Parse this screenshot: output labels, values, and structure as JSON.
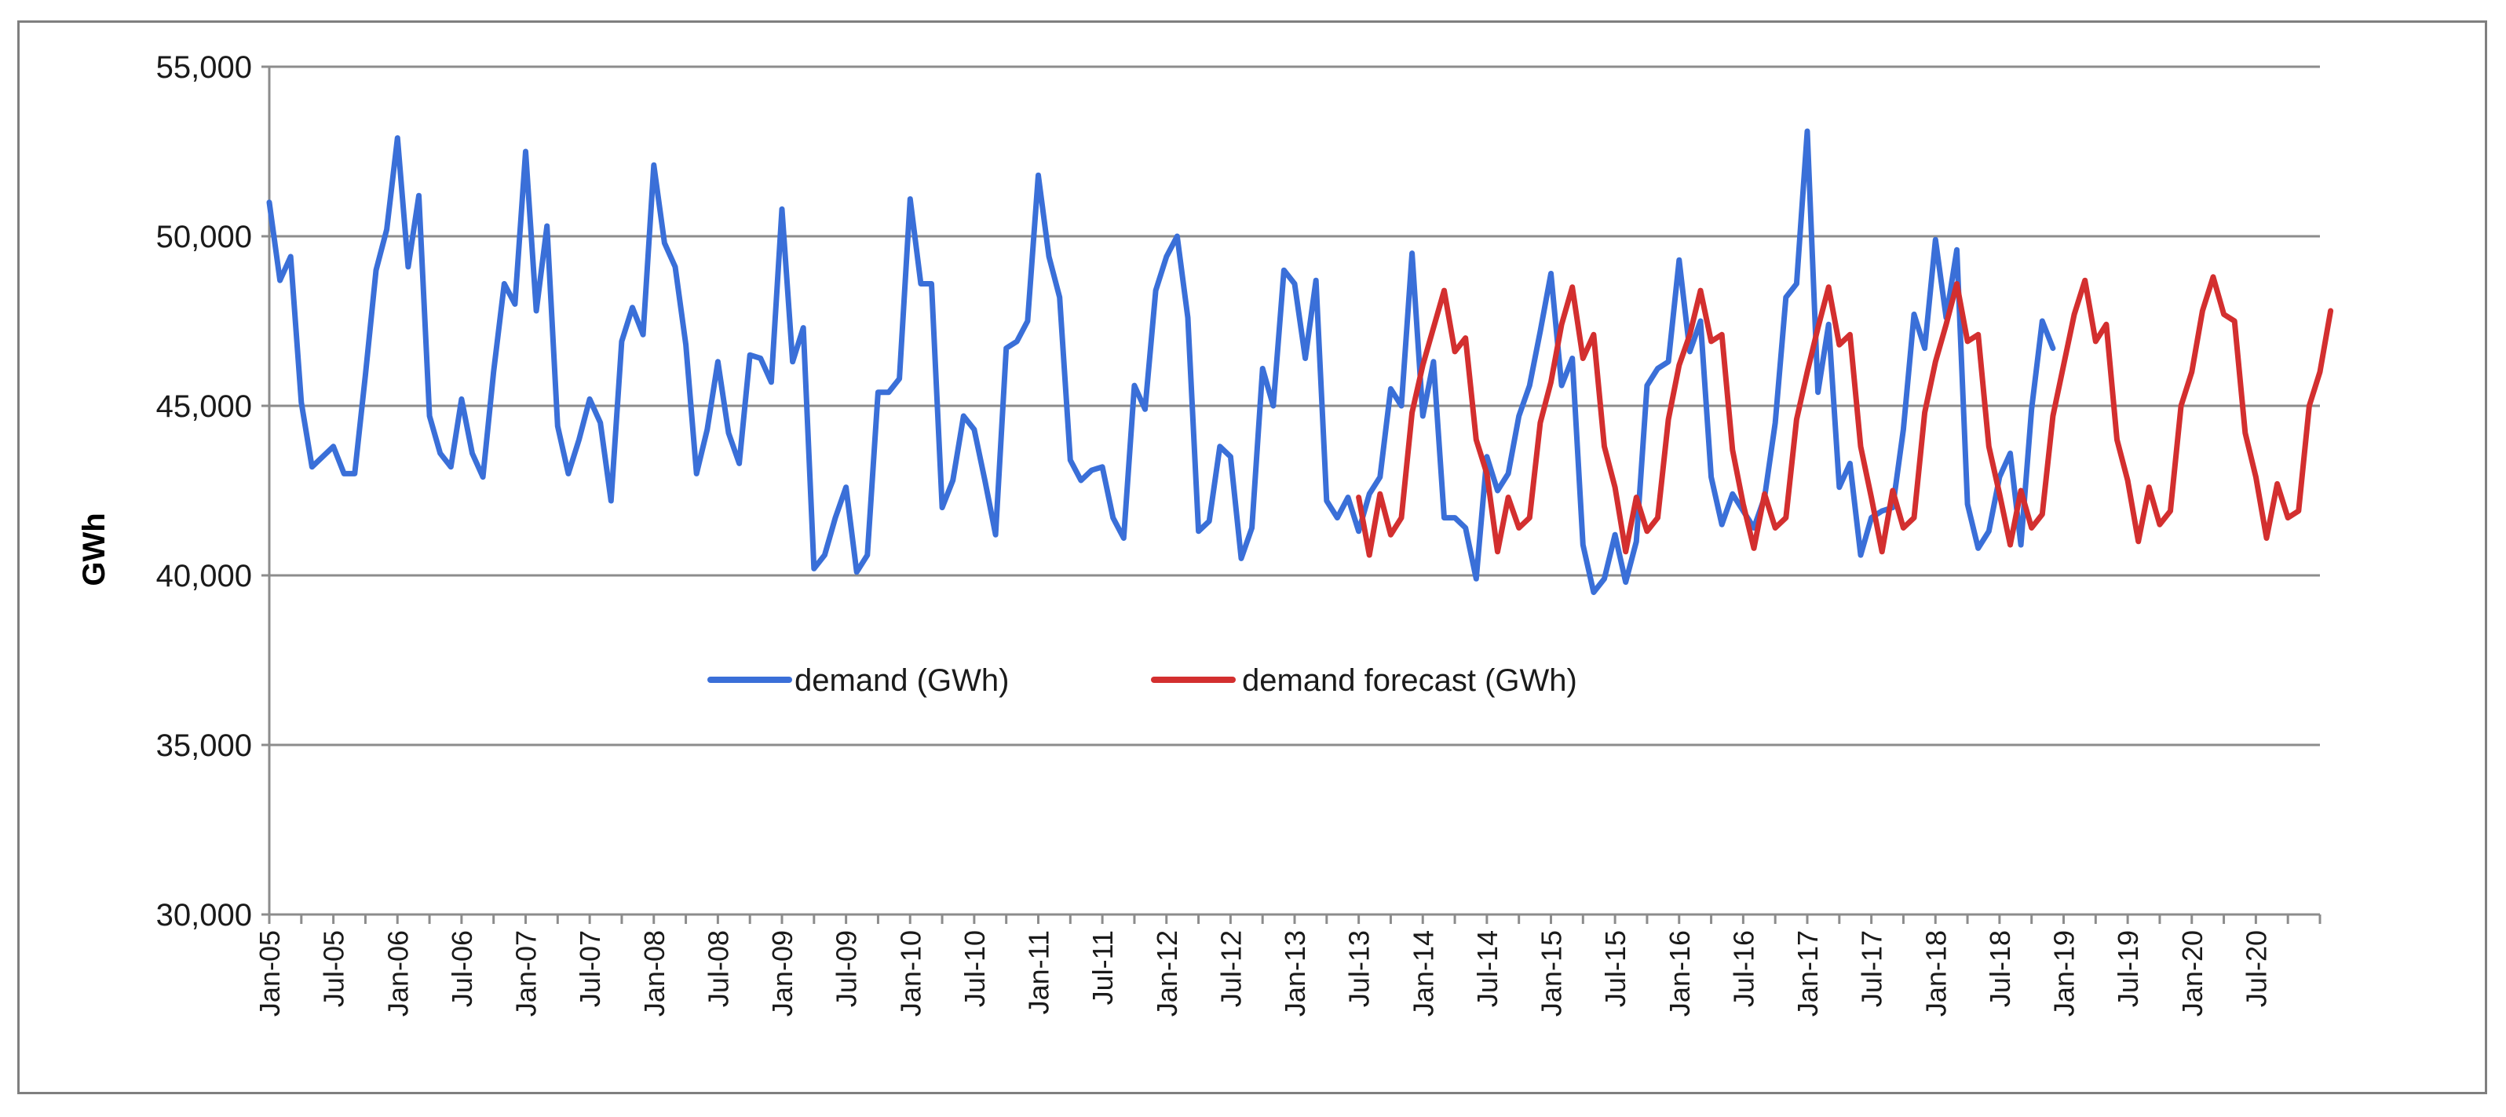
{
  "chart_data": {
    "type": "line",
    "title": "",
    "xlabel": "",
    "ylabel": "GWh",
    "ylim": [
      30000,
      55000
    ],
    "y_ticks": [
      30000,
      35000,
      40000,
      45000,
      50000,
      55000
    ],
    "y_tick_labels": [
      "30,000",
      "35,000",
      "40,000",
      "45,000",
      "50,000",
      "55,000"
    ],
    "x_tick_labels": [
      "Jan-05",
      "Jul-05",
      "Jan-06",
      "Jul-06",
      "Jan-07",
      "Jul-07",
      "Jan-08",
      "Jul-08",
      "Jan-09",
      "Jul-09",
      "Jan-10",
      "Jul-10",
      "Jan-11",
      "Jul-11",
      "Jan-12",
      "Jul-12",
      "Jan-13",
      "Jul-13",
      "Jan-14",
      "Jul-14",
      "Jan-15",
      "Jul-15",
      "Jan-16",
      "Jul-16",
      "Jan-17",
      "Jul-17",
      "Jan-18",
      "Jul-18",
      "Jan-19",
      "Jul-19",
      "Jan-20",
      "Jul-20"
    ],
    "x_start": "Jan-05",
    "x_unit": "months since Jan-05",
    "grid": true,
    "legend_position": "center",
    "series": [
      {
        "name": "demand (GWh)",
        "color": "#3a6fd8",
        "start_index": 0,
        "values": [
          51000,
          48700,
          49400,
          45100,
          43200,
          43500,
          43800,
          43000,
          43000,
          45900,
          49000,
          50200,
          52900,
          49100,
          51200,
          44700,
          43600,
          43200,
          45200,
          43600,
          42900,
          46000,
          48600,
          48000,
          52500,
          47800,
          50300,
          44400,
          43000,
          44000,
          45200,
          44500,
          42200,
          46900,
          47900,
          47100,
          52100,
          49800,
          49100,
          46800,
          43000,
          44300,
          46300,
          44200,
          43300,
          46500,
          46400,
          45700,
          50800,
          46300,
          47300,
          40200,
          40600,
          41700,
          42600,
          40100,
          40600,
          45400,
          45400,
          45800,
          51100,
          48600,
          48600,
          42000,
          42800,
          44700,
          44300,
          42800,
          41200,
          46700,
          46900,
          47500,
          51800,
          49400,
          48200,
          43400,
          42800,
          43100,
          43200,
          41700,
          41100,
          45600,
          44900,
          48400,
          49400,
          50000,
          47600,
          41300,
          41600,
          43800,
          43500,
          40500,
          41400,
          46100,
          45000,
          49000,
          48600,
          46400,
          48700,
          42200,
          41700,
          42300,
          41300,
          42400,
          42900,
          45500,
          45000,
          49500,
          44700,
          46300,
          41700,
          41700,
          41400,
          39900,
          43500,
          42500,
          43000,
          44700,
          45600,
          47200,
          48900,
          45600,
          46400,
          40900,
          39500,
          39900,
          41200,
          39800,
          41000,
          45600,
          46100,
          46300,
          49300,
          46600,
          47500,
          42900,
          41500,
          42400,
          41900,
          41400,
          42300,
          44500,
          48200,
          48600,
          53100,
          45400,
          47400,
          42600,
          43300,
          40600,
          41700,
          41900,
          42000,
          44300,
          47700,
          46700,
          49900,
          47600,
          49600,
          42100,
          40800,
          41300,
          42900,
          43600,
          40900,
          44900,
          47500,
          46700
        ]
      },
      {
        "name": "demand forecast (GWh)",
        "color": "#d32f2f",
        "start_index": 102,
        "values": [
          42300,
          40600,
          42400,
          41200,
          41700,
          44800,
          46200,
          47300,
          48400,
          46600,
          47000,
          44000,
          43000,
          40700,
          42300,
          41400,
          41700,
          44500,
          45700,
          47400,
          48500,
          46400,
          47100,
          43800,
          42600,
          40700,
          42300,
          41300,
          41700,
          44600,
          46200,
          47100,
          48400,
          46900,
          47100,
          43700,
          42100,
          40800,
          42400,
          41400,
          41700,
          44600,
          46000,
          47300,
          48500,
          46800,
          47100,
          43800,
          42300,
          40700,
          42500,
          41400,
          41700,
          44800,
          46300,
          47400,
          48600,
          46900,
          47100,
          43800,
          42400,
          40900,
          42500,
          41400,
          41800,
          44700,
          46200,
          47700,
          48700,
          46900,
          47400,
          44000,
          42800,
          41000,
          42600,
          41500,
          41900,
          45000,
          46000,
          47800,
          48800,
          47700,
          47500,
          44200,
          42900,
          41100,
          42700,
          41700,
          41900,
          45000,
          46000,
          47800
        ]
      }
    ]
  }
}
